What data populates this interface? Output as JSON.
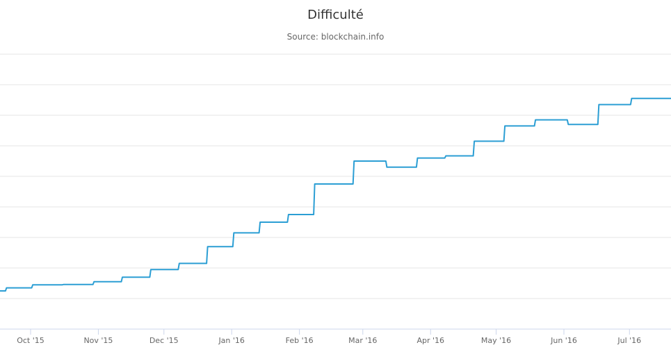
{
  "chart_data": {
    "type": "line",
    "title": "Difficulté",
    "subtitle": "Source: blockchain.info",
    "xlabel": "",
    "ylabel": "",
    "x_tick_labels": [
      "Oct '15",
      "Nov '15",
      "Dec '15",
      "Jan '16",
      "Feb '16",
      "Mar '16",
      "Apr '16",
      "May '16",
      "Jun '16",
      "Jul '16"
    ],
    "x_tick_dates": [
      "2015-10-01",
      "2015-11-01",
      "2015-12-01",
      "2016-01-01",
      "2016-02-01",
      "2016-03-01",
      "2016-04-01",
      "2016-05-01",
      "2016-06-01",
      "2016-07-01"
    ],
    "xlim": [
      "2015-09-17",
      "2016-07-20"
    ],
    "ylim": [
      0,
      9
    ],
    "grid": "horizontal",
    "legend": "none",
    "line_color": "#2b9ed4",
    "series": [
      {
        "step": true,
        "x": [
          "2015-09-17",
          "2015-09-20",
          "2015-10-02",
          "2015-10-16",
          "2015-10-30",
          "2015-11-12",
          "2015-11-25",
          "2015-12-08",
          "2015-12-21",
          "2016-01-02",
          "2016-01-14",
          "2016-01-27",
          "2016-02-08",
          "2016-02-26",
          "2016-03-12",
          "2016-03-26",
          "2016-04-08",
          "2016-04-21",
          "2016-05-05",
          "2016-05-19",
          "2016-06-03",
          "2016-06-17",
          "2016-07-02"
        ],
        "y": [
          1.25,
          1.35,
          1.45,
          1.46,
          1.55,
          1.7,
          1.95,
          2.15,
          2.7,
          3.15,
          3.5,
          3.75,
          4.75,
          5.5,
          5.3,
          5.6,
          5.67,
          6.15,
          6.65,
          6.85,
          6.7,
          7.35,
          7.55
        ]
      }
    ]
  }
}
